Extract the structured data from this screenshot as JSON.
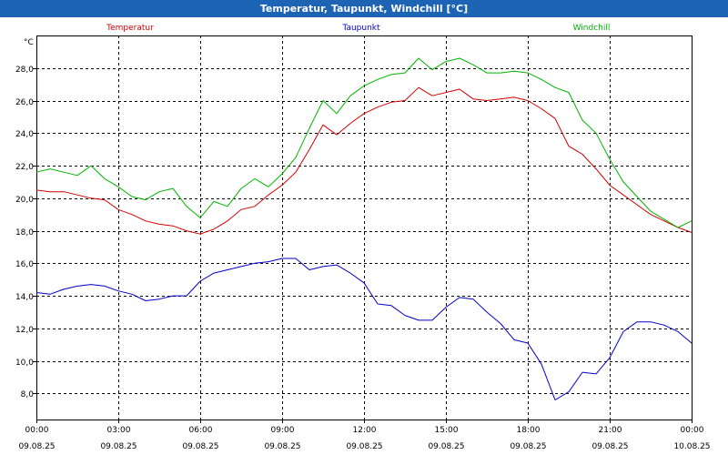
{
  "window": {
    "title": "Temperatur, Taupunkt, Windchill [°C]"
  },
  "chart_data": {
    "type": "line",
    "title": "Temperatur, Taupunkt, Windchill [°C]",
    "ylabel": "°C",
    "xlabel": "",
    "ylim": [
      6.4,
      30.0
    ],
    "xlim": [
      0,
      24
    ],
    "grid": true,
    "yticks": [
      8.0,
      10.0,
      12.0,
      14.0,
      16.0,
      18.0,
      20.0,
      22.0,
      24.0,
      26.0,
      28.0
    ],
    "ytick_labels": [
      "8,0",
      "10,0",
      "12,0",
      "14,0",
      "16,0",
      "18,0",
      "20,0",
      "22,0",
      "24,0",
      "26,0",
      "28,0"
    ],
    "xticks": [
      {
        "value": 0,
        "time": "00:00",
        "date": "09.08.25"
      },
      {
        "value": 3,
        "time": "03:00",
        "date": "09.08.25"
      },
      {
        "value": 6,
        "time": "06:00",
        "date": "09.08.25"
      },
      {
        "value": 9,
        "time": "09:00",
        "date": "09.08.25"
      },
      {
        "value": 12,
        "time": "12:00",
        "date": "09.08.25"
      },
      {
        "value": 15,
        "time": "15:00",
        "date": "09.08.25"
      },
      {
        "value": 18,
        "time": "18:00",
        "date": "09.08.25"
      },
      {
        "value": 21,
        "time": "21:00",
        "date": "09.08.25"
      },
      {
        "value": 24,
        "time": "00:00",
        "date": "10.08.25"
      }
    ],
    "x": [
      0,
      0.5,
      1,
      1.5,
      2,
      2.5,
      3,
      3.5,
      4,
      4.5,
      5,
      5.5,
      6,
      6.5,
      7,
      7.5,
      8,
      8.5,
      9,
      9.5,
      10,
      10.5,
      11,
      11.5,
      12,
      12.5,
      13,
      13.5,
      14,
      14.5,
      15,
      15.5,
      16,
      16.5,
      17,
      17.5,
      18,
      18.5,
      19,
      19.5,
      20,
      20.5,
      21,
      21.5,
      22,
      22.5,
      23,
      23.5,
      24
    ],
    "series": [
      {
        "name": "Temperatur",
        "color": "#d40000",
        "values": [
          20.5,
          20.4,
          20.4,
          20.2,
          20.0,
          19.9,
          19.3,
          19.0,
          18.6,
          18.4,
          18.3,
          18.0,
          17.8,
          18.1,
          18.6,
          19.3,
          19.5,
          20.2,
          20.8,
          21.6,
          23.0,
          24.5,
          23.9,
          24.6,
          25.2,
          25.6,
          25.9,
          26.0,
          26.8,
          26.3,
          26.5,
          26.7,
          26.1,
          26.0,
          26.1,
          26.2,
          26.0,
          25.5,
          24.9,
          23.2,
          22.7,
          21.8,
          20.8,
          20.2,
          19.6,
          19.0,
          18.6,
          18.2,
          17.9
        ]
      },
      {
        "name": "Taupunkt",
        "color": "#0000c8",
        "values": [
          14.2,
          14.1,
          14.4,
          14.6,
          14.7,
          14.6,
          14.3,
          14.1,
          13.7,
          13.8,
          14.0,
          14.0,
          14.9,
          15.4,
          15.6,
          15.8,
          16.0,
          16.1,
          16.3,
          16.3,
          15.6,
          15.8,
          15.9,
          15.4,
          14.8,
          13.5,
          13.4,
          12.8,
          12.5,
          12.5,
          13.3,
          13.9,
          13.8,
          13.0,
          12.3,
          11.3,
          11.1,
          9.8,
          7.6,
          8.1,
          9.3,
          9.2,
          10.2,
          11.8,
          12.4,
          12.4,
          12.2,
          11.8,
          11.1
        ]
      },
      {
        "name": "Windchill",
        "color": "#00b400",
        "values": [
          21.6,
          21.8,
          21.6,
          21.4,
          22.0,
          21.2,
          20.7,
          20.1,
          19.9,
          20.4,
          20.6,
          19.5,
          18.8,
          19.8,
          19.5,
          20.6,
          21.2,
          20.7,
          21.5,
          22.5,
          24.3,
          26.0,
          25.2,
          26.3,
          26.9,
          27.3,
          27.6,
          27.7,
          28.6,
          27.9,
          28.4,
          28.6,
          28.2,
          27.7,
          27.7,
          27.8,
          27.7,
          27.3,
          26.8,
          26.5,
          24.8,
          24.0,
          22.4,
          21.0,
          20.1,
          19.2,
          18.7,
          18.2,
          18.6
        ]
      }
    ]
  }
}
